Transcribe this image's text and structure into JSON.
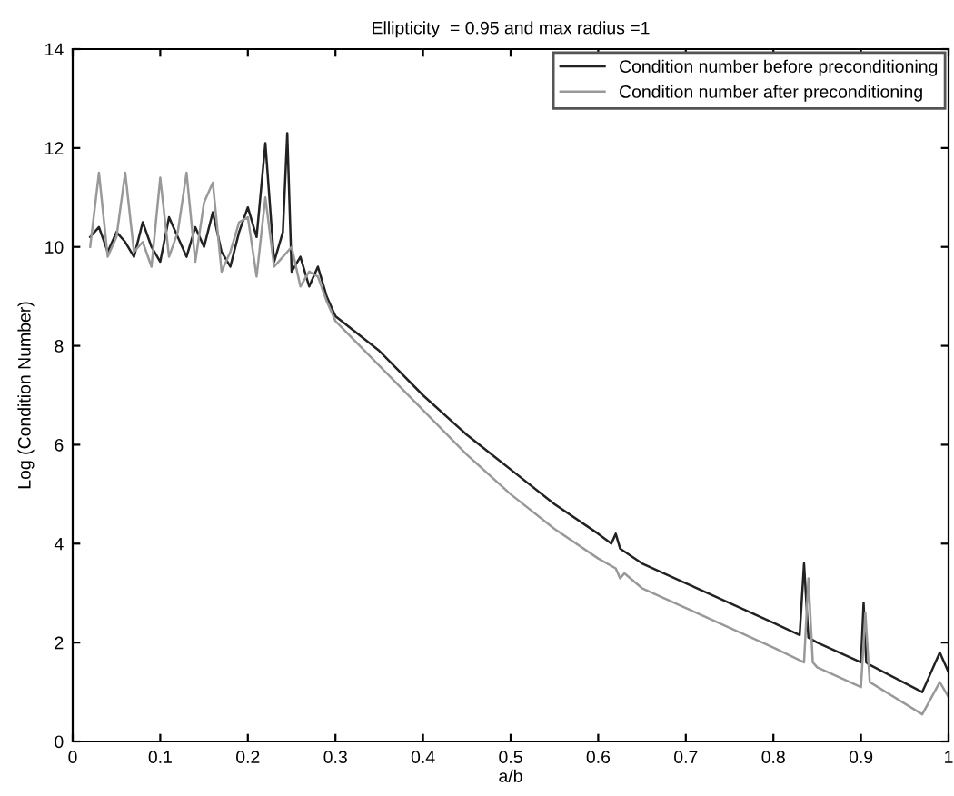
{
  "chart_data": {
    "type": "line",
    "title": "Ellipticity  = 0.95 and max radius =1",
    "xlabel": "a/b",
    "ylabel": "Log (Condition Number)",
    "xlim": [
      0,
      1
    ],
    "ylim": [
      0,
      14
    ],
    "xticks": [
      0,
      0.1,
      0.2,
      0.3,
      0.4,
      0.5,
      0.6,
      0.7,
      0.8,
      0.9,
      1
    ],
    "yticks": [
      0,
      2,
      4,
      6,
      8,
      10,
      12,
      14
    ],
    "grid": false,
    "legend": "top right",
    "series": [
      {
        "name": "Condition number before preconditioning",
        "color": "#222222",
        "x": [
          0.02,
          0.03,
          0.04,
          0.05,
          0.06,
          0.07,
          0.08,
          0.09,
          0.1,
          0.11,
          0.12,
          0.13,
          0.14,
          0.15,
          0.16,
          0.17,
          0.18,
          0.19,
          0.2,
          0.21,
          0.22,
          0.23,
          0.24,
          0.245,
          0.25,
          0.26,
          0.27,
          0.28,
          0.29,
          0.3,
          0.35,
          0.4,
          0.45,
          0.5,
          0.55,
          0.6,
          0.615,
          0.62,
          0.625,
          0.65,
          0.7,
          0.75,
          0.8,
          0.83,
          0.835,
          0.84,
          0.845,
          0.85,
          0.9,
          0.903,
          0.906,
          0.91,
          0.97,
          0.99,
          1.0
        ],
        "values": [
          10.2,
          10.4,
          9.9,
          10.3,
          10.1,
          9.8,
          10.5,
          10.0,
          9.7,
          10.6,
          10.2,
          9.8,
          10.4,
          10.0,
          10.7,
          9.9,
          9.6,
          10.3,
          10.8,
          10.2,
          12.1,
          9.7,
          10.3,
          12.3,
          9.5,
          9.8,
          9.2,
          9.6,
          9.0,
          8.6,
          7.9,
          7.0,
          6.2,
          5.5,
          4.8,
          4.2,
          4.0,
          4.2,
          3.9,
          3.6,
          3.2,
          2.8,
          2.4,
          2.15,
          3.6,
          2.1,
          2.05,
          2.0,
          1.6,
          2.8,
          1.6,
          1.55,
          1.0,
          1.8,
          1.4
        ]
      },
      {
        "name": "Condition number after preconditioning",
        "color": "#999999",
        "x": [
          0.02,
          0.03,
          0.04,
          0.05,
          0.06,
          0.07,
          0.08,
          0.09,
          0.1,
          0.11,
          0.12,
          0.13,
          0.14,
          0.15,
          0.16,
          0.17,
          0.18,
          0.19,
          0.2,
          0.21,
          0.22,
          0.23,
          0.24,
          0.25,
          0.26,
          0.27,
          0.28,
          0.29,
          0.3,
          0.35,
          0.4,
          0.45,
          0.5,
          0.55,
          0.6,
          0.62,
          0.625,
          0.63,
          0.65,
          0.7,
          0.75,
          0.8,
          0.835,
          0.84,
          0.845,
          0.85,
          0.9,
          0.905,
          0.91,
          0.97,
          0.99,
          1.0
        ],
        "values": [
          10.0,
          11.5,
          9.8,
          10.2,
          11.5,
          9.9,
          10.1,
          9.6,
          11.4,
          9.8,
          10.3,
          11.5,
          9.7,
          10.9,
          11.3,
          9.5,
          9.9,
          10.5,
          10.6,
          9.4,
          11.0,
          9.6,
          9.8,
          10.0,
          9.2,
          9.5,
          9.4,
          8.9,
          8.5,
          7.6,
          6.7,
          5.8,
          5.0,
          4.3,
          3.7,
          3.5,
          3.3,
          3.4,
          3.1,
          2.7,
          2.3,
          1.9,
          1.6,
          3.3,
          1.6,
          1.5,
          1.1,
          2.6,
          1.2,
          0.55,
          1.2,
          0.9
        ]
      }
    ]
  }
}
